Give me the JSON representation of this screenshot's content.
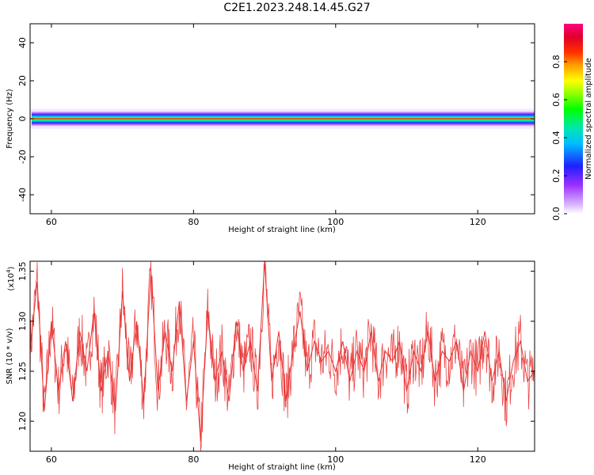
{
  "figure": {
    "title": "C2E1.2023.248.14.45.G27"
  },
  "chart_data": [
    {
      "type": "heatmap",
      "xlabel": "Height of straight line (km)",
      "ylabel": "Frequency (Hz)",
      "xlim": [
        57,
        128
      ],
      "ylim": [
        -50,
        50
      ],
      "xticks": [
        60,
        80,
        100,
        120
      ],
      "yticks": [
        -40,
        -20,
        0,
        20,
        40
      ],
      "colorbar": {
        "label": "Normalized spectral amplitude",
        "range": [
          0,
          1
        ],
        "ticks": [
          "0.0",
          "0.2",
          "0.4",
          "0.6",
          "0.8"
        ]
      },
      "band": {
        "center_hz": 0,
        "core_halfwidth_hz": 1.5,
        "halo_halfwidth_hz": 4
      }
    },
    {
      "type": "line",
      "xlabel": "Height of straight line (km)",
      "ylabel": "SNR (10 * v/v)",
      "yscale_label": "(x10",
      "yscale_exp": "4",
      "yscale_close": ")",
      "xlim": [
        57,
        128
      ],
      "ylim": [
        1.17,
        1.36
      ],
      "xticks": [
        60,
        80,
        100,
        120
      ],
      "yticks": [
        "1.20",
        "1.25",
        "1.30",
        "1.35"
      ],
      "series": [
        {
          "color": "#e83030",
          "x": [
            57,
            58,
            59,
            60,
            61,
            62,
            63,
            64,
            65,
            66,
            67,
            68,
            69,
            70,
            71,
            72,
            73,
            74,
            75,
            76,
            77,
            78,
            79,
            80,
            81,
            82,
            83,
            84,
            85,
            86,
            87,
            88,
            89,
            90,
            91,
            92,
            93,
            94,
            95,
            96,
            97,
            98,
            99,
            100,
            101,
            102,
            103,
            104,
            105,
            106,
            107,
            108,
            109,
            110,
            111,
            112,
            113,
            114,
            115,
            116,
            117,
            118,
            119,
            120,
            121,
            122,
            123,
            124,
            125,
            126,
            127,
            128
          ],
          "y": [
            1.27,
            1.34,
            1.21,
            1.3,
            1.23,
            1.28,
            1.22,
            1.29,
            1.25,
            1.31,
            1.23,
            1.27,
            1.21,
            1.33,
            1.24,
            1.3,
            1.22,
            1.35,
            1.23,
            1.29,
            1.25,
            1.32,
            1.22,
            1.28,
            1.18,
            1.31,
            1.24,
            1.27,
            1.22,
            1.3,
            1.25,
            1.28,
            1.23,
            1.36,
            1.24,
            1.29,
            1.22,
            1.27,
            1.31,
            1.25,
            1.28,
            1.26,
            1.27,
            1.25,
            1.28,
            1.24,
            1.27,
            1.25,
            1.29,
            1.24,
            1.27,
            1.26,
            1.28,
            1.23,
            1.27,
            1.25,
            1.29,
            1.24,
            1.27,
            1.26,
            1.28,
            1.23,
            1.27,
            1.25,
            1.29,
            1.24,
            1.27,
            1.22,
            1.26,
            1.28,
            1.24,
            1.25
          ]
        }
      ]
    }
  ]
}
